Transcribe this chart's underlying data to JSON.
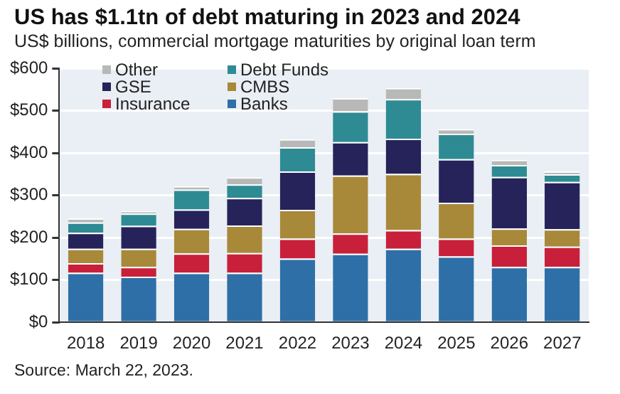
{
  "chart_data": {
    "type": "bar",
    "title": "US has $1.1tn of debt maturing in 2023 and 2024",
    "subtitle": "US$ billions, commercial mortgage maturities by original loan term",
    "categories": [
      "2018",
      "2019",
      "2020",
      "2021",
      "2022",
      "2023",
      "2024",
      "2025",
      "2026",
      "2027"
    ],
    "stacked": true,
    "series": [
      {
        "name": "Banks",
        "color": "#2e6fa7",
        "values": [
          117,
          108,
          117,
          117,
          151,
          162,
          174,
          156,
          131,
          131
        ]
      },
      {
        "name": "Insurance",
        "color": "#c8203a",
        "values": [
          23,
          23,
          46,
          47,
          47,
          48,
          44,
          42,
          51,
          48
        ]
      },
      {
        "name": "CMBS",
        "color": "#a8893a",
        "values": [
          34,
          43,
          58,
          65,
          68,
          137,
          133,
          85,
          40,
          41
        ]
      },
      {
        "name": "GSE",
        "color": "#26235a",
        "values": [
          38,
          54,
          46,
          65,
          91,
          79,
          83,
          103,
          122,
          112
        ]
      },
      {
        "name": "Debt Funds",
        "color": "#2e8b93",
        "values": [
          24,
          29,
          47,
          32,
          57,
          73,
          94,
          60,
          28,
          18
        ]
      },
      {
        "name": "Other",
        "color": "#b8b8b8",
        "values": [
          10,
          6,
          8,
          17,
          19,
          31,
          26,
          11,
          12,
          7
        ]
      }
    ],
    "ylim": [
      0,
      600
    ],
    "yticks": [
      {
        "value": 0,
        "label": "$0"
      },
      {
        "value": 100,
        "label": "$100"
      },
      {
        "value": 200,
        "label": "$200"
      },
      {
        "value": 300,
        "label": "$300"
      },
      {
        "value": 400,
        "label": "$400"
      },
      {
        "value": 500,
        "label": "$500"
      },
      {
        "value": 600,
        "label": "$600"
      }
    ],
    "grid": "y",
    "legend": "top left",
    "annotations": [
      "Source: March 22, 2023."
    ]
  }
}
